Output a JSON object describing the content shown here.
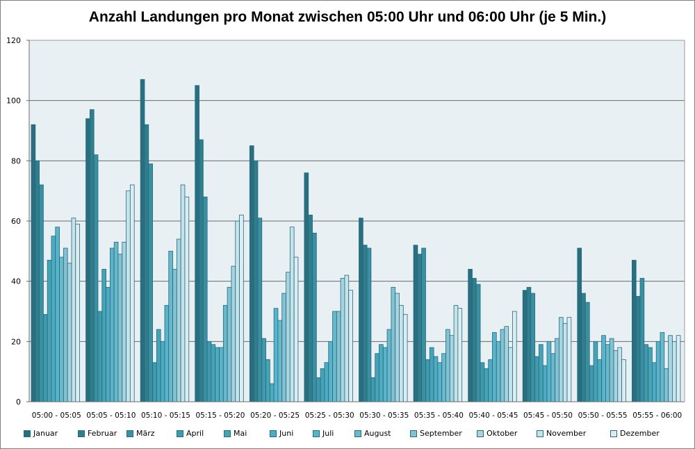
{
  "chart_data": {
    "type": "bar",
    "title": "Anzahl Landungen pro Monat zwischen 05:00 Uhr und 06:00 Uhr (je 5 Min.)",
    "xlabel": "",
    "ylabel": "",
    "ylim": [
      0,
      120
    ],
    "yticks": [
      0,
      20,
      40,
      60,
      80,
      100,
      120
    ],
    "grid": true,
    "legend_position": "bottom",
    "categories": [
      "05:00 - 05:05",
      "05:05 - 05:10",
      "05:10 - 05:15",
      "05:15 - 05:20",
      "05:20 - 05:25",
      "05:25 - 05:30",
      "05:30 - 05:35",
      "05:35 - 05:40",
      "05:40 - 05:45",
      "05:45 - 05:50",
      "05:50 - 05:55",
      "05:55 - 06:00"
    ],
    "series": [
      {
        "name": "Januar",
        "color": "#2b6e7f",
        "values": [
          92,
          94,
          107,
          105,
          85,
          76,
          61,
          52,
          44,
          37,
          51,
          47
        ]
      },
      {
        "name": "Februar",
        "color": "#327d8c",
        "values": [
          80,
          97,
          92,
          87,
          80,
          62,
          52,
          49,
          41,
          38,
          36,
          35
        ]
      },
      {
        "name": "März",
        "color": "#3b8fa0",
        "values": [
          72,
          82,
          79,
          68,
          61,
          56,
          51,
          51,
          39,
          36,
          33,
          41
        ]
      },
      {
        "name": "April",
        "color": "#4399ac",
        "values": [
          29,
          30,
          13,
          20,
          21,
          8,
          8,
          14,
          13,
          15,
          12,
          19
        ]
      },
      {
        "name": "Mai",
        "color": "#48a3b6",
        "values": [
          47,
          44,
          24,
          19,
          14,
          11,
          16,
          18,
          11,
          19,
          20,
          18
        ]
      },
      {
        "name": "Juni",
        "color": "#4eabc1",
        "values": [
          55,
          38,
          20,
          18,
          6,
          13,
          19,
          15,
          14,
          12,
          14,
          13
        ]
      },
      {
        "name": "Juli",
        "color": "#5ab3c8",
        "values": [
          58,
          51,
          32,
          18,
          31,
          20,
          18,
          13,
          23,
          20,
          22,
          20
        ]
      },
      {
        "name": "August",
        "color": "#6bb8cb",
        "values": [
          48,
          53,
          50,
          32,
          27,
          30,
          24,
          16,
          20,
          16,
          19,
          23
        ]
      },
      {
        "name": "September",
        "color": "#84c2d2",
        "values": [
          51,
          49,
          44,
          38,
          36,
          30,
          38,
          24,
          24,
          21,
          21,
          11
        ]
      },
      {
        "name": "Oktober",
        "color": "#a9d3de",
        "values": [
          46,
          53,
          54,
          45,
          43,
          41,
          36,
          22,
          25,
          28,
          17,
          22
        ]
      },
      {
        "name": "November",
        "color": "#c8e2ea",
        "values": [
          61,
          70,
          72,
          60,
          58,
          42,
          32,
          32,
          18,
          26,
          18,
          20
        ]
      },
      {
        "name": "Dezember",
        "color": "#dcecf1",
        "values": [
          59,
          72,
          68,
          62,
          48,
          37,
          29,
          31,
          30,
          28,
          14,
          22
        ]
      }
    ]
  }
}
